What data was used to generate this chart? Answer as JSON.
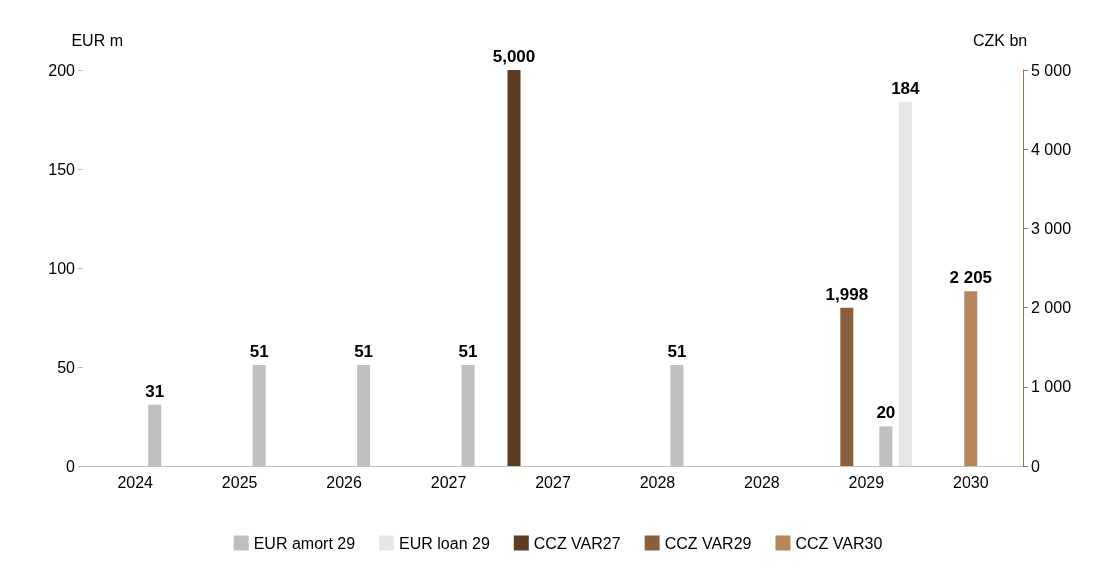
{
  "chart_data": {
    "type": "bar",
    "ylabel": "EUR m",
    "y2label": "CZK bn",
    "categories": [
      "2024",
      "2025",
      "2026",
      "2027",
      "2027",
      "2028",
      "2028",
      "2029",
      "2030"
    ],
    "series": [
      {
        "name": "CCZ VAR27",
        "color": "#5c3d22",
        "axis": "y2",
        "values": [
          null,
          null,
          null,
          null,
          5000,
          null,
          null,
          null,
          null
        ],
        "value_labels": [
          null,
          null,
          null,
          null,
          "5,000",
          null,
          null,
          null,
          null
        ]
      },
      {
        "name": "CCZ VAR29",
        "color": "#8b5e3c",
        "axis": "y2",
        "values": [
          null,
          null,
          null,
          null,
          null,
          null,
          null,
          1998,
          null
        ],
        "value_labels": [
          null,
          null,
          null,
          null,
          null,
          null,
          null,
          "1,998",
          null
        ]
      },
      {
        "name": "CCZ VAR30",
        "color": "#b5875a",
        "axis": "y2",
        "values": [
          null,
          null,
          null,
          null,
          null,
          null,
          null,
          null,
          2205
        ],
        "value_labels": [
          null,
          null,
          null,
          null,
          null,
          null,
          null,
          null,
          "2 205"
        ]
      },
      {
        "name": "EUR amort 29",
        "color": "#bfbfbf",
        "values": [
          31,
          51,
          51,
          51,
          null,
          51,
          null,
          20,
          null
        ],
        "value_labels": [
          "31",
          "51",
          "51",
          "51",
          null,
          "51",
          null,
          "20",
          null
        ]
      },
      {
        "name": "EUR loan 29",
        "color": "#e6e6e6",
        "values": [
          null,
          null,
          null,
          null,
          null,
          null,
          null,
          184,
          null
        ],
        "value_labels": [
          null,
          null,
          null,
          null,
          null,
          null,
          null,
          "184",
          null
        ]
      }
    ],
    "ylim": [
      0,
      200
    ],
    "yticks": [
      0,
      50,
      100,
      150,
      200
    ],
    "y2lim": [
      0,
      5000
    ],
    "y2ticks": [
      0,
      {
        "value": 1000,
        "label": "1 000"
      },
      {
        "value": 2000,
        "label": "2 000"
      },
      {
        "value": 3000,
        "label": "3 000"
      },
      {
        "value": 4000,
        "label": "4 000"
      },
      {
        "value": 5000,
        "label": "5 000"
      }
    ],
    "grid": false,
    "legend": "bottom"
  }
}
